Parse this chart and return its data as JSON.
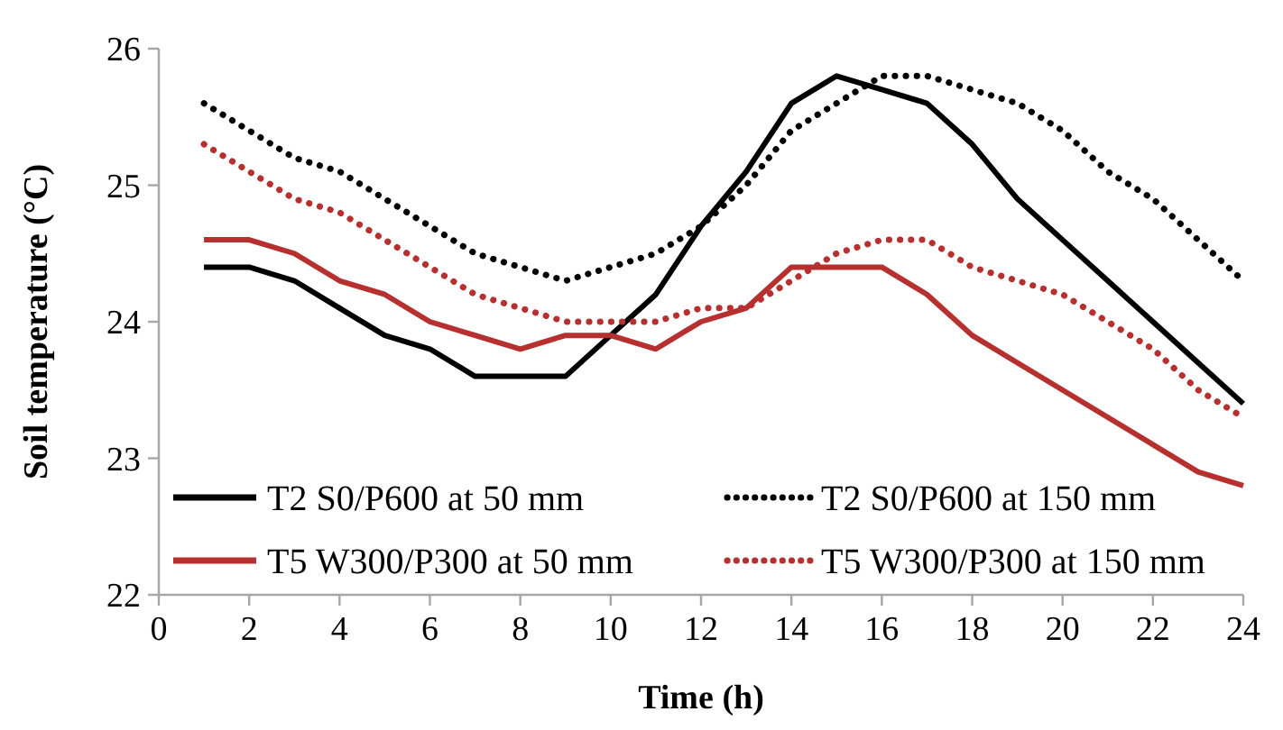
{
  "chart_data": {
    "type": "line",
    "xlabel": "Time (h)",
    "ylabel": "Soil temperature (°C)",
    "x": [
      1,
      2,
      3,
      4,
      5,
      6,
      7,
      8,
      9,
      10,
      11,
      12,
      13,
      14,
      15,
      16,
      17,
      18,
      19,
      20,
      21,
      22,
      23,
      24
    ],
    "xlim": [
      0,
      24
    ],
    "xticks": [
      0,
      2,
      4,
      6,
      8,
      10,
      12,
      14,
      16,
      18,
      20,
      22,
      24
    ],
    "ylim": [
      22,
      26
    ],
    "yticks": [
      22,
      23,
      24,
      25,
      26
    ],
    "grid": false,
    "legend": "bottom",
    "marker": "none",
    "series": [
      {
        "name": "T2 S0/P600 at 50 mm",
        "color": "#000000",
        "line_style": "solid",
        "values": [
          24.4,
          24.4,
          24.3,
          24.1,
          23.9,
          23.8,
          23.6,
          23.6,
          23.6,
          23.9,
          24.2,
          24.7,
          25.1,
          25.6,
          25.8,
          25.7,
          25.6,
          25.3,
          24.9,
          24.6,
          24.3,
          24.0,
          23.7,
          23.4
        ]
      },
      {
        "name": "T2 S0/P600 at 150 mm",
        "color": "#000000",
        "line_style": "dotted",
        "values": [
          25.6,
          25.4,
          25.2,
          25.1,
          24.9,
          24.7,
          24.5,
          24.4,
          24.3,
          24.4,
          24.5,
          24.7,
          25.0,
          25.4,
          25.6,
          25.8,
          25.8,
          25.7,
          25.6,
          25.4,
          25.1,
          24.9,
          24.6,
          24.3
        ]
      },
      {
        "name": "T5 W300/P300 at 50 mm",
        "color": "#b5302e",
        "line_style": "solid",
        "values": [
          24.6,
          24.6,
          24.5,
          24.3,
          24.2,
          24.0,
          23.9,
          23.8,
          23.9,
          23.9,
          23.8,
          24.0,
          24.1,
          24.4,
          24.4,
          24.4,
          24.2,
          23.9,
          23.7,
          23.5,
          23.3,
          23.1,
          22.9,
          22.8
        ]
      },
      {
        "name": "T5 W300/P300 at 150 mm",
        "color": "#b5302e",
        "line_style": "dotted",
        "values": [
          25.3,
          25.1,
          24.9,
          24.8,
          24.6,
          24.4,
          24.2,
          24.1,
          24.0,
          24.0,
          24.0,
          24.1,
          24.1,
          24.3,
          24.5,
          24.6,
          24.6,
          24.4,
          24.3,
          24.2,
          24.0,
          23.8,
          23.5,
          23.3
        ]
      }
    ]
  }
}
